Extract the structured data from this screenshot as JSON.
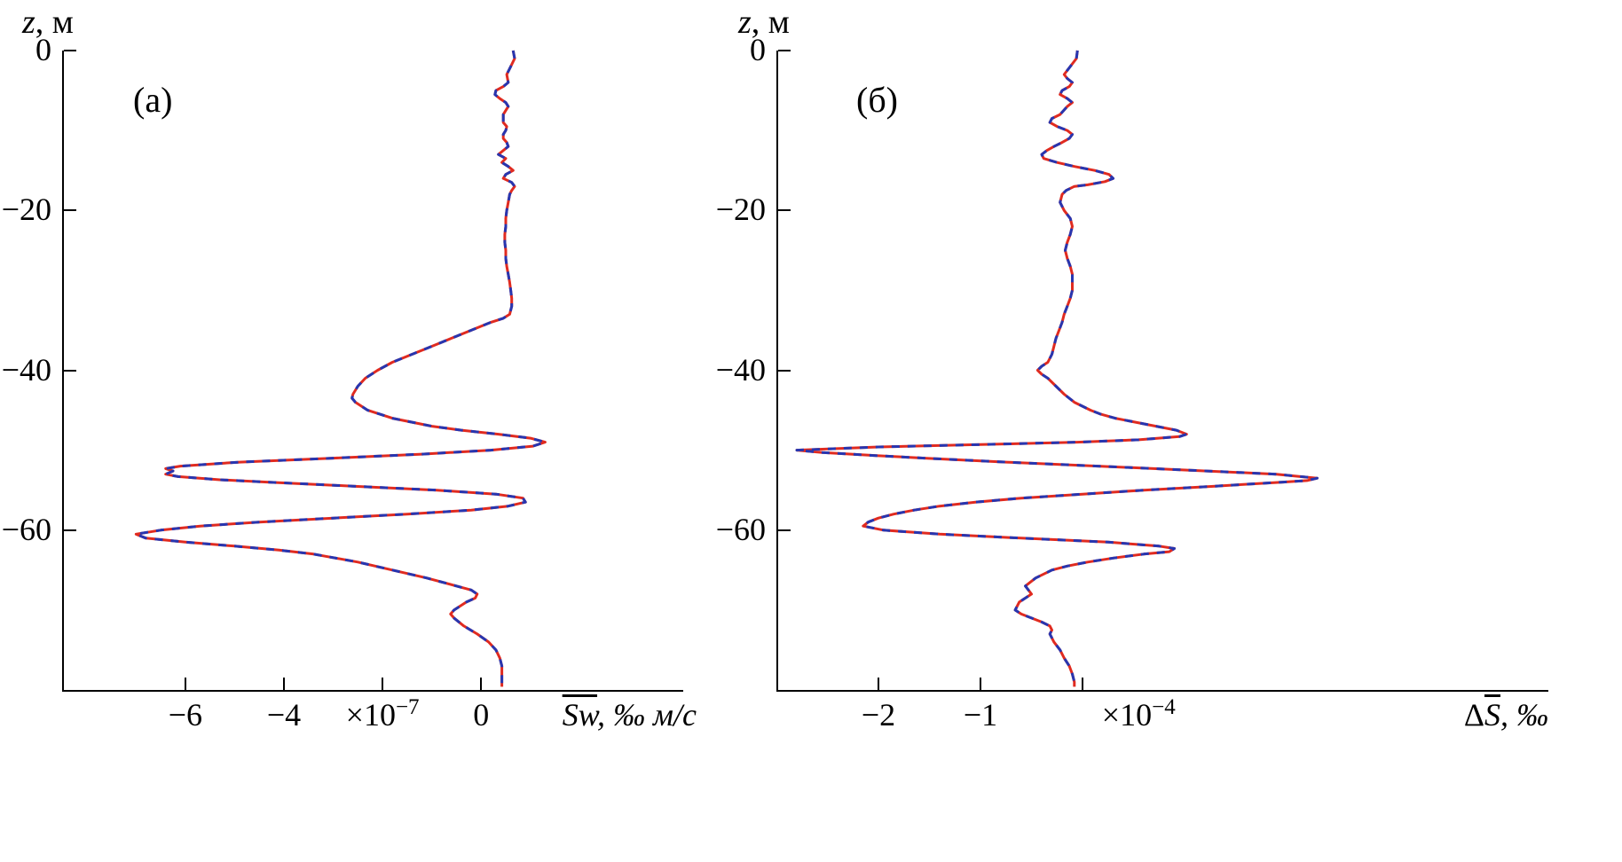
{
  "figure": {
    "background": "#ffffff",
    "curve_colors": {
      "primary": "#e02b20",
      "overlay": "#2736b0"
    },
    "axis_color": "#000000"
  },
  "chart_data": [
    {
      "type": "line",
      "panel_label": "(а)",
      "corner_label": {
        "var": "z",
        "rest": ", м"
      },
      "xlabel": {
        "prefix": "",
        "overline": "Sw",
        "rest": ", ‰ м/с"
      },
      "multiplier": {
        "main": "×10",
        "sup": "−7",
        "at_value": -2
      },
      "x_unit_scale": "1e-7",
      "xlim": [
        -8.5,
        4.1
      ],
      "ylim": [
        -80,
        0
      ],
      "grid": false,
      "legend": null,
      "x_ticks": [
        {
          "value": -6,
          "label": "−6"
        },
        {
          "value": -4,
          "label": "−4"
        },
        {
          "value": -2,
          "label": ""
        },
        {
          "value": 0,
          "label": "0"
        }
      ],
      "y_ticks": [
        {
          "value": 0,
          "label": "0"
        },
        {
          "value": -20,
          "label": "−20"
        },
        {
          "value": -40,
          "label": "−40"
        },
        {
          "value": -60,
          "label": "−60"
        }
      ],
      "series": [
        {
          "name": "vertical salt flux profile",
          "style": "red solid with blue dashed overlay",
          "colors": [
            "#e02b20",
            "#2736b0"
          ],
          "points": [
            [
              0,
              0.65
            ],
            [
              -1,
              0.68
            ],
            [
              -2,
              0.6
            ],
            [
              -3,
              0.52
            ],
            [
              -4,
              0.55
            ],
            [
              -4.5,
              0.45
            ],
            [
              -5,
              0.3
            ],
            [
              -5.5,
              0.28
            ],
            [
              -6,
              0.38
            ],
            [
              -6.5,
              0.5
            ],
            [
              -7,
              0.55
            ],
            [
              -7.5,
              0.5
            ],
            [
              -8,
              0.45
            ],
            [
              -9,
              0.45
            ],
            [
              -9.5,
              0.52
            ],
            [
              -10,
              0.5
            ],
            [
              -10.5,
              0.45
            ],
            [
              -11,
              0.45
            ],
            [
              -11.5,
              0.52
            ],
            [
              -12,
              0.55
            ],
            [
              -12.5,
              0.45
            ],
            [
              -13,
              0.35
            ],
            [
              -13.5,
              0.5
            ],
            [
              -14,
              0.42
            ],
            [
              -14.5,
              0.55
            ],
            [
              -15,
              0.65
            ],
            [
              -15.5,
              0.5
            ],
            [
              -16,
              0.45
            ],
            [
              -16.5,
              0.62
            ],
            [
              -17,
              0.68
            ],
            [
              -17.5,
              0.62
            ],
            [
              -18,
              0.58
            ],
            [
              -19,
              0.55
            ],
            [
              -20,
              0.52
            ],
            [
              -21,
              0.5
            ],
            [
              -22,
              0.5
            ],
            [
              -23,
              0.48
            ],
            [
              -24,
              0.48
            ],
            [
              -25,
              0.5
            ],
            [
              -26,
              0.5
            ],
            [
              -27,
              0.52
            ],
            [
              -28,
              0.55
            ],
            [
              -29,
              0.58
            ],
            [
              -30,
              0.6
            ],
            [
              -31,
              0.62
            ],
            [
              -32,
              0.62
            ],
            [
              -33,
              0.58
            ],
            [
              -33.5,
              0.45
            ],
            [
              -34,
              0.2
            ],
            [
              -35,
              -0.2
            ],
            [
              -36,
              -0.6
            ],
            [
              -37,
              -1.0
            ],
            [
              -38,
              -1.4
            ],
            [
              -39,
              -1.8
            ],
            [
              -40,
              -2.1
            ],
            [
              -41,
              -2.35
            ],
            [
              -42,
              -2.5
            ],
            [
              -43,
              -2.6
            ],
            [
              -43.5,
              -2.62
            ],
            [
              -44,
              -2.55
            ],
            [
              -45,
              -2.3
            ],
            [
              -46,
              -1.8
            ],
            [
              -47,
              -1.0
            ],
            [
              -47.5,
              -0.4
            ],
            [
              -48,
              0.35
            ],
            [
              -48.5,
              1.0
            ],
            [
              -49,
              1.3
            ],
            [
              -49.5,
              1.05
            ],
            [
              -50,
              0.2
            ],
            [
              -50.5,
              -1.2
            ],
            [
              -51,
              -3.0
            ],
            [
              -51.5,
              -4.9
            ],
            [
              -52,
              -6.1
            ],
            [
              -52.3,
              -6.4
            ],
            [
              -52.6,
              -6.25
            ],
            [
              -53,
              -6.4
            ],
            [
              -53.3,
              -6.15
            ],
            [
              -53.7,
              -5.3
            ],
            [
              -54,
              -4.3
            ],
            [
              -54.5,
              -2.6
            ],
            [
              -55,
              -0.9
            ],
            [
              -55.5,
              0.3
            ],
            [
              -56,
              0.85
            ],
            [
              -56.5,
              0.9
            ],
            [
              -57,
              0.55
            ],
            [
              -57.5,
              -0.2
            ],
            [
              -58,
              -1.5
            ],
            [
              -58.5,
              -3.0
            ],
            [
              -59,
              -4.5
            ],
            [
              -59.5,
              -5.7
            ],
            [
              -60,
              -6.5
            ],
            [
              -60.5,
              -7.0
            ],
            [
              -61,
              -6.8
            ],
            [
              -61.5,
              -6.0
            ],
            [
              -62,
              -5.0
            ],
            [
              -62.5,
              -4.1
            ],
            [
              -63,
              -3.4
            ],
            [
              -64,
              -2.5
            ],
            [
              -65,
              -1.8
            ],
            [
              -66,
              -1.1
            ],
            [
              -67,
              -0.5
            ],
            [
              -67.5,
              -0.2
            ],
            [
              -68,
              -0.08
            ],
            [
              -68.5,
              -0.12
            ],
            [
              -69,
              -0.3
            ],
            [
              -70,
              -0.55
            ],
            [
              -70.5,
              -0.62
            ],
            [
              -71,
              -0.55
            ],
            [
              -72,
              -0.35
            ],
            [
              -73,
              -0.08
            ],
            [
              -74,
              0.15
            ],
            [
              -75,
              0.3
            ],
            [
              -76,
              0.38
            ],
            [
              -77,
              0.42
            ],
            [
              -78,
              0.42
            ],
            [
              -79,
              0.42
            ],
            [
              -79.6,
              0.42
            ]
          ]
        }
      ]
    },
    {
      "type": "line",
      "panel_label": "(б)",
      "corner_label": {
        "var": "z",
        "rest": ", м"
      },
      "xlabel": {
        "prefix": "Δ",
        "overline": "S",
        "rest": ", ‰"
      },
      "multiplier": {
        "main": "×10",
        "sup": "−4",
        "at_value": 0.55
      },
      "x_unit_scale": "1e-4",
      "xlim": [
        -3.0,
        4.565
      ],
      "ylim": [
        -80,
        0
      ],
      "grid": false,
      "legend": null,
      "x_ticks": [
        {
          "value": -2,
          "label": "−2"
        },
        {
          "value": -1,
          "label": "−1"
        },
        {
          "value": 0,
          "label": ""
        }
      ],
      "y_ticks": [
        {
          "value": 0,
          "label": "0"
        },
        {
          "value": -20,
          "label": "−20"
        },
        {
          "value": -40,
          "label": "−40"
        },
        {
          "value": -60,
          "label": "−60"
        }
      ],
      "series": [
        {
          "name": "mean salinity difference profile",
          "style": "red solid with blue dashed overlay",
          "colors": [
            "#e02b20",
            "#2736b0"
          ],
          "points": [
            [
              0,
              -0.05
            ],
            [
              -1,
              -0.06
            ],
            [
              -2,
              -0.12
            ],
            [
              -3,
              -0.18
            ],
            [
              -3.5,
              -0.15
            ],
            [
              -4,
              -0.1
            ],
            [
              -4.5,
              -0.13
            ],
            [
              -5,
              -0.2
            ],
            [
              -5.5,
              -0.22
            ],
            [
              -6,
              -0.15
            ],
            [
              -6.5,
              -0.1
            ],
            [
              -7,
              -0.15
            ],
            [
              -8,
              -0.22
            ],
            [
              -8.5,
              -0.3
            ],
            [
              -9,
              -0.32
            ],
            [
              -9.5,
              -0.25
            ],
            [
              -10,
              -0.15
            ],
            [
              -10.5,
              -0.1
            ],
            [
              -11,
              -0.13
            ],
            [
              -11.5,
              -0.2
            ],
            [
              -12,
              -0.28
            ],
            [
              -12.5,
              -0.35
            ],
            [
              -13,
              -0.4
            ],
            [
              -13.5,
              -0.38
            ],
            [
              -14,
              -0.25
            ],
            [
              -14.5,
              -0.08
            ],
            [
              -15,
              0.12
            ],
            [
              -15.5,
              0.26
            ],
            [
              -16,
              0.3
            ],
            [
              -16.4,
              0.22
            ],
            [
              -16.8,
              0.05
            ],
            [
              -17,
              -0.08
            ],
            [
              -17.5,
              -0.16
            ],
            [
              -18,
              -0.2
            ],
            [
              -19,
              -0.22
            ],
            [
              -20,
              -0.18
            ],
            [
              -21,
              -0.12
            ],
            [
              -22,
              -0.1
            ],
            [
              -23,
              -0.12
            ],
            [
              -24,
              -0.15
            ],
            [
              -25,
              -0.17
            ],
            [
              -26,
              -0.15
            ],
            [
              -27,
              -0.12
            ],
            [
              -28,
              -0.1
            ],
            [
              -29,
              -0.1
            ],
            [
              -30,
              -0.1
            ],
            [
              -31,
              -0.12
            ],
            [
              -32,
              -0.15
            ],
            [
              -33,
              -0.18
            ],
            [
              -34,
              -0.2
            ],
            [
              -35,
              -0.23
            ],
            [
              -36,
              -0.26
            ],
            [
              -37,
              -0.28
            ],
            [
              -38,
              -0.3
            ],
            [
              -39,
              -0.34
            ],
            [
              -39.5,
              -0.4
            ],
            [
              -40,
              -0.44
            ],
            [
              -40.5,
              -0.4
            ],
            [
              -41,
              -0.34
            ],
            [
              -42,
              -0.26
            ],
            [
              -43,
              -0.18
            ],
            [
              -44,
              -0.08
            ],
            [
              -45,
              0.08
            ],
            [
              -45.5,
              0.18
            ],
            [
              -46,
              0.32
            ],
            [
              -46.5,
              0.52
            ],
            [
              -47,
              0.72
            ],
            [
              -47.5,
              0.92
            ],
            [
              -48,
              1.02
            ],
            [
              -48.3,
              0.95
            ],
            [
              -48.7,
              0.55
            ],
            [
              -49,
              -0.05
            ],
            [
              -49.3,
              -1.0
            ],
            [
              -49.6,
              -2.0
            ],
            [
              -50,
              -2.8
            ],
            [
              -50.3,
              -2.55
            ],
            [
              -50.7,
              -2.0
            ],
            [
              -51,
              -1.55
            ],
            [
              -51.5,
              -0.75
            ],
            [
              -52,
              0.15
            ],
            [
              -52.5,
              1.05
            ],
            [
              -53,
              1.9
            ],
            [
              -53.5,
              2.3
            ],
            [
              -53.8,
              2.2
            ],
            [
              -54,
              1.95
            ],
            [
              -54.5,
              1.3
            ],
            [
              -55,
              0.6
            ],
            [
              -55.5,
              0.0
            ],
            [
              -56,
              -0.6
            ],
            [
              -56.5,
              -1.05
            ],
            [
              -57,
              -1.4
            ],
            [
              -57.5,
              -1.65
            ],
            [
              -58,
              -1.85
            ],
            [
              -58.5,
              -2.0
            ],
            [
              -59,
              -2.1
            ],
            [
              -59.5,
              -2.15
            ],
            [
              -60,
              -1.95
            ],
            [
              -60.5,
              -1.4
            ],
            [
              -61,
              -0.6
            ],
            [
              -61.5,
              0.25
            ],
            [
              -62,
              0.75
            ],
            [
              -62.3,
              0.9
            ],
            [
              -62.7,
              0.85
            ],
            [
              -63,
              0.6
            ],
            [
              -63.5,
              0.3
            ],
            [
              -64,
              0.05
            ],
            [
              -64.5,
              -0.15
            ],
            [
              -65,
              -0.3
            ],
            [
              -66,
              -0.46
            ],
            [
              -67,
              -0.56
            ],
            [
              -68,
              -0.5
            ],
            [
              -68.5,
              -0.56
            ],
            [
              -69,
              -0.62
            ],
            [
              -70,
              -0.66
            ],
            [
              -70.5,
              -0.6
            ],
            [
              -71,
              -0.5
            ],
            [
              -71.5,
              -0.4
            ],
            [
              -72,
              -0.32
            ],
            [
              -72.5,
              -0.3
            ],
            [
              -73,
              -0.32
            ],
            [
              -74,
              -0.28
            ],
            [
              -75,
              -0.22
            ],
            [
              -76,
              -0.18
            ],
            [
              -77,
              -0.13
            ],
            [
              -78,
              -0.1
            ],
            [
              -79,
              -0.08
            ],
            [
              -79.6,
              -0.08
            ]
          ]
        }
      ]
    }
  ]
}
